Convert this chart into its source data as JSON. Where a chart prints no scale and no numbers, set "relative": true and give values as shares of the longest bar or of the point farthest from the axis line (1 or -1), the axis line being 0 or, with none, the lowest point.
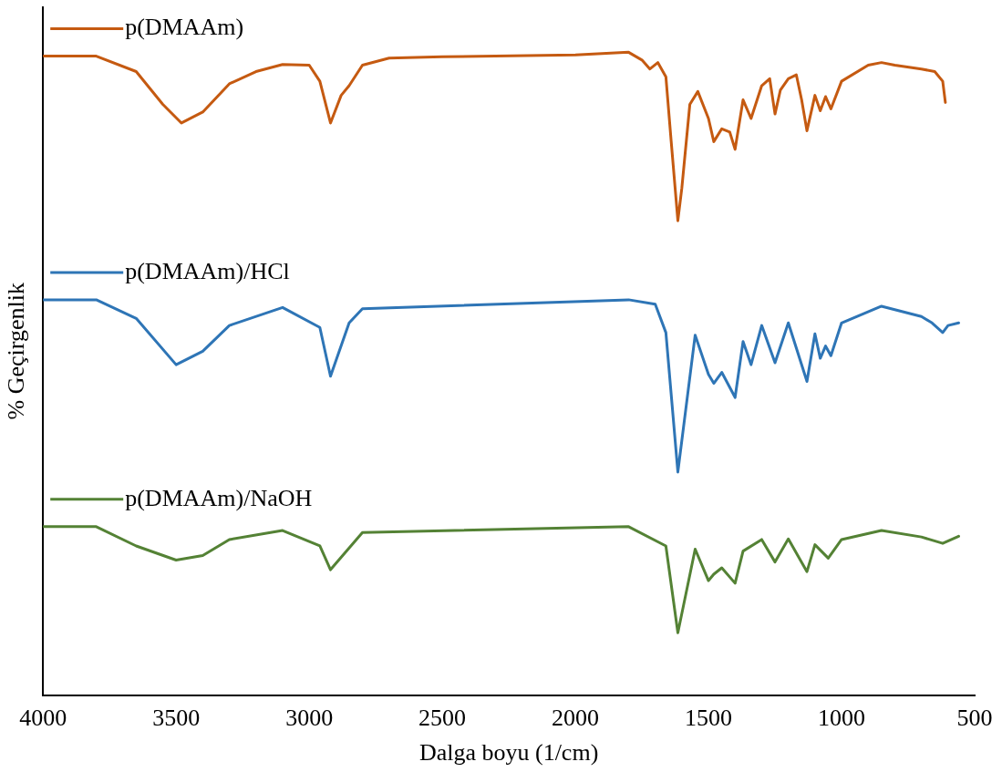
{
  "chart_data": {
    "type": "line",
    "relative": true,
    "xlabel": "Dalga boyu (1/cm)",
    "ylabel": "% Geçirgenlik",
    "xlim": [
      4000,
      500
    ],
    "xticks": [
      4000,
      3500,
      3000,
      2500,
      2000,
      1500,
      1000,
      500
    ],
    "grid": false,
    "legend": "left",
    "marker": "none",
    "line_style": "solid",
    "series": [
      {
        "name": "p(DMAAm)",
        "color": "#c55a11",
        "x": [
          4000,
          3800,
          3650,
          3550,
          3480,
          3400,
          3300,
          3200,
          3100,
          3000,
          2960,
          2920,
          2880,
          2850,
          2800,
          2700,
          2500,
          2000,
          1800,
          1750,
          1720,
          1690,
          1660,
          1640,
          1615,
          1600,
          1570,
          1540,
          1500,
          1480,
          1450,
          1420,
          1400,
          1370,
          1340,
          1300,
          1270,
          1250,
          1230,
          1200,
          1170,
          1150,
          1130,
          1100,
          1080,
          1060,
          1040,
          1000,
          900,
          850,
          800,
          700,
          650,
          620,
          610
        ],
        "values": [
          0.994,
          0.994,
          0.97,
          0.919,
          0.89,
          0.907,
          0.951,
          0.97,
          0.981,
          0.98,
          0.955,
          0.89,
          0.933,
          0.948,
          0.98,
          0.991,
          0.993,
          0.996,
          1.0,
          0.988,
          0.974,
          0.984,
          0.962,
          0.861,
          0.738,
          0.789,
          0.919,
          0.939,
          0.897,
          0.861,
          0.881,
          0.876,
          0.849,
          0.926,
          0.897,
          0.948,
          0.959,
          0.904,
          0.941,
          0.959,
          0.965,
          0.926,
          0.878,
          0.933,
          0.909,
          0.931,
          0.912,
          0.955,
          0.98,
          0.984,
          0.98,
          0.974,
          0.97,
          0.955,
          0.922
        ]
      },
      {
        "name": "p(DMAAm)/HCl",
        "color": "#2e75b6",
        "x": [
          4000,
          3800,
          3650,
          3500,
          3400,
          3300,
          3100,
          2960,
          2920,
          2850,
          2800,
          1800,
          1700,
          1660,
          1615,
          1550,
          1500,
          1480,
          1450,
          1400,
          1370,
          1340,
          1300,
          1250,
          1200,
          1130,
          1100,
          1080,
          1060,
          1040,
          1000,
          850,
          700,
          660,
          620,
          600,
          560
        ],
        "values": [
          0.615,
          0.615,
          0.586,
          0.514,
          0.535,
          0.575,
          0.603,
          0.572,
          0.496,
          0.579,
          0.601,
          0.615,
          0.608,
          0.564,
          0.347,
          0.56,
          0.499,
          0.485,
          0.502,
          0.463,
          0.55,
          0.514,
          0.575,
          0.517,
          0.579,
          0.488,
          0.562,
          0.524,
          0.543,
          0.528,
          0.579,
          0.605,
          0.589,
          0.579,
          0.564,
          0.575,
          0.579
        ]
      },
      {
        "name": "p(DMAAm)/NaOH",
        "color": "#548235",
        "x": [
          4000,
          3800,
          3650,
          3500,
          3400,
          3300,
          3100,
          2960,
          2920,
          2800,
          1800,
          1660,
          1615,
          1550,
          1500,
          1480,
          1450,
          1400,
          1370,
          1300,
          1250,
          1200,
          1130,
          1100,
          1050,
          1000,
          850,
          700,
          620,
          560
        ],
        "values": [
          0.262,
          0.262,
          0.232,
          0.21,
          0.217,
          0.242,
          0.256,
          0.232,
          0.195,
          0.253,
          0.262,
          0.232,
          0.097,
          0.227,
          0.178,
          0.188,
          0.198,
          0.174,
          0.224,
          0.242,
          0.207,
          0.243,
          0.192,
          0.234,
          0.213,
          0.242,
          0.256,
          0.246,
          0.236,
          0.247
        ]
      }
    ]
  }
}
